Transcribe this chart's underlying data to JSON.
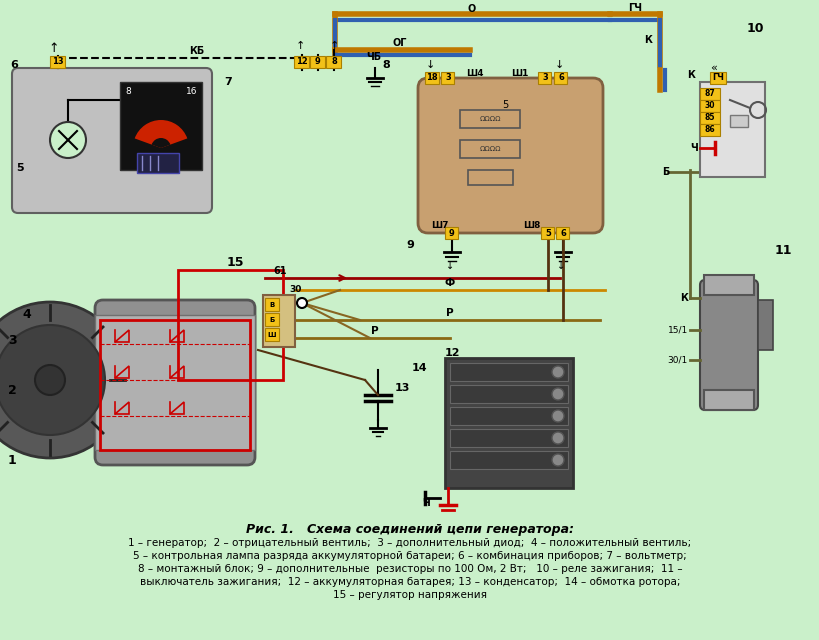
{
  "bg_color": "#caf0ca",
  "title_line1": "Рис. 1.   Схема соединений цепи генератора:",
  "caption_lines": [
    "1 – генератор;  2 – отрицательный вентиль;  3 – дополнительный диод;  4 – положительный вентиль;",
    "5 – контрольная лампа разряда аккумуляторной батареи; 6 – комбинация приборов; 7 – вольтметр;",
    "8 – монтажный блок; 9 – дополнительные  резисторы по 100 Ом, 2 Вт;   10 – реле зажигания;  11 –",
    "выключатель зажигания;  12 – аккумуляторная батарея; 13 – конденсатор;  14 – обмотка ротора;",
    "15 – регулятор напряжения"
  ],
  "fig_width": 8.2,
  "fig_height": 6.4,
  "dpi": 100
}
